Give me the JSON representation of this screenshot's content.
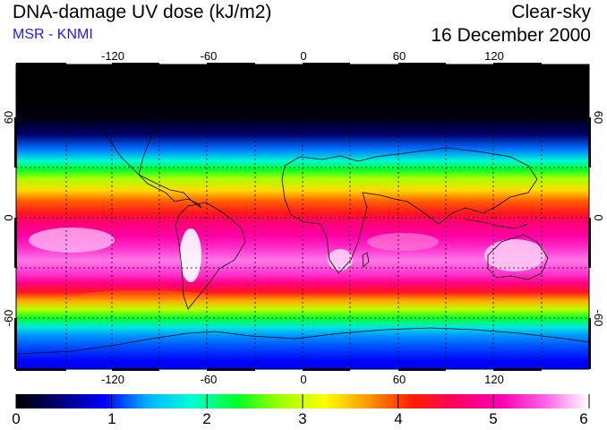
{
  "header": {
    "title": "DNA-damage UV dose (kJ/m2)",
    "subtitle": "MSR - KNMI",
    "condition": "Clear-sky",
    "date": "16 December 2000"
  },
  "axes": {
    "lon_ticks": [
      "-120",
      "-60",
      "0",
      "60",
      "120"
    ],
    "lat_ticks_left": [
      "60",
      "0",
      "-60"
    ],
    "lat_ticks_right": [
      "60",
      "0",
      "-60"
    ]
  },
  "colorbar": {
    "labels": [
      "0",
      "1",
      "2",
      "3",
      "4",
      "5",
      "6"
    ],
    "min": 0,
    "max": 6,
    "colors": [
      "#000000",
      "#00007a",
      "#0000ff",
      "#00b4ff",
      "#00ffd2",
      "#00ff28",
      "#a0ff00",
      "#ffff00",
      "#ff9600",
      "#ff1e00",
      "#ff0064",
      "#ff00b4",
      "#ff64e6",
      "#ffffff"
    ]
  },
  "field_profile": {
    "latitudes": [
      90,
      70,
      60,
      50,
      42,
      35,
      30,
      25,
      18,
      12,
      5,
      0,
      -8,
      -15,
      -22,
      -30,
      -35,
      -40,
      -45,
      -50,
      -55,
      -60,
      -65,
      -72,
      -80,
      -90
    ],
    "dose_kJ_m2": [
      0.0,
      0.0,
      0.05,
      0.4,
      1.2,
      1.8,
      2.3,
      2.8,
      3.4,
      3.9,
      4.3,
      4.7,
      5.0,
      5.3,
      5.6,
      5.3,
      4.8,
      4.3,
      3.6,
      2.9,
      2.3,
      1.7,
      1.3,
      1.1,
      0.9,
      0.9
    ]
  }
}
